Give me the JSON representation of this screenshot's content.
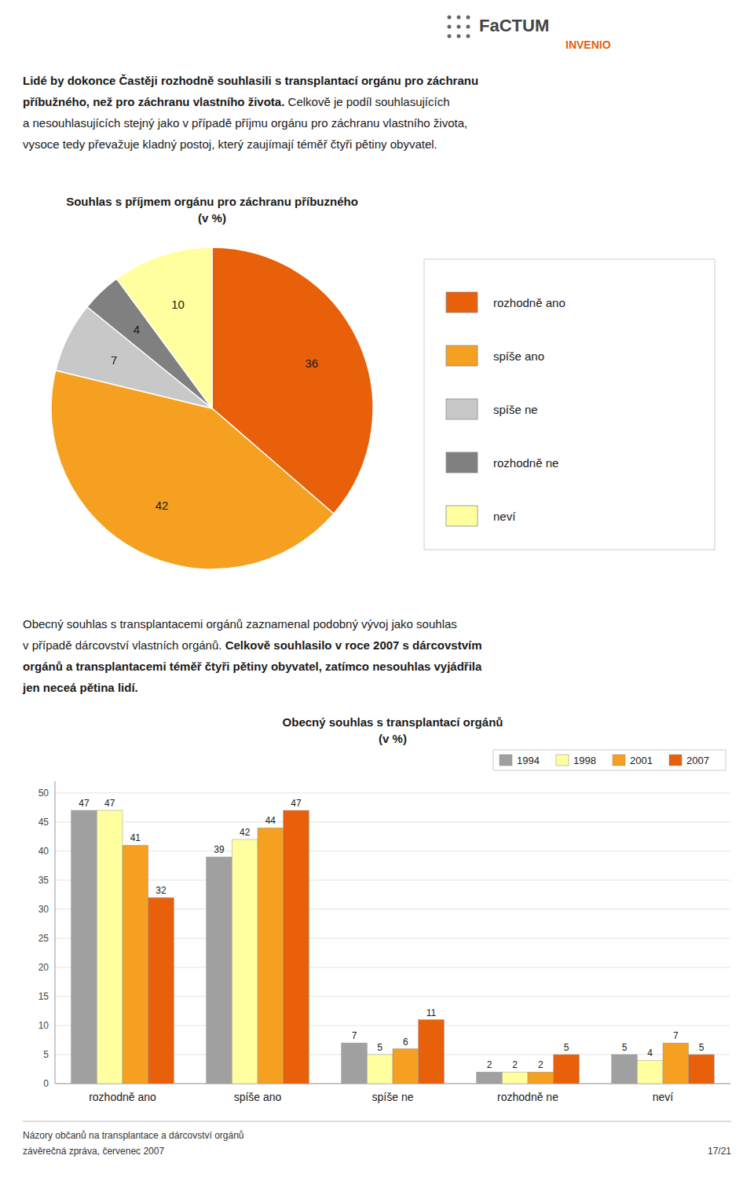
{
  "logo": {
    "texts": [
      "FaCTUM",
      "INVENIO"
    ],
    "colors": [
      "#444444",
      "#e8600a"
    ]
  },
  "header": [
    "Lidé by dokonce Častěji rozhodně souhlasili s transplantací orgánu pro záchranu",
    "příbužného, než pro záchranu vlastního života.",
    " Celkově je podíl souhlasujících",
    "a nesouhlasujících stejný jako v případě příjmu orgánu pro záchranu vlastního života,",
    "vysoce tedy převažuje kladný postoj, který zaujímají téměř čtyři pětiny obyvatel."
  ],
  "middle_text": [
    "Obecný souhlas s transplantacemi orgánů zaznamenal podobný vývoj jako souhlas",
    "v případě dárcovství vlastních orgánů.",
    " Celkově souhlasilo v roce 2007 s dárcovstvím",
    "orgánů a transplantacemi téměř čtyři pětiny obyvatel, zatímco nesouhlas vyjádřila",
    "jen neceá pětina lidí."
  ],
  "footer": [
    "Názory občanů na transplantace a dárcovství orgánů",
    "závěrečná zpráva, červenec 2007"
  ],
  "page_number": "17/21",
  "chart_data": [
    {
      "type": "pie",
      "title": "Souhlas s příjmem orgánu pro záchranu příbuzného",
      "subtitle": "(v %)",
      "categories": [
        "rozhodně ano",
        "spíše ano",
        "spíše ne",
        "rozhodně ne",
        "neví"
      ],
      "values": [
        36,
        42,
        7,
        4,
        10
      ],
      "colors": [
        "#e8600a",
        "#f5a020",
        "#c8c8c8",
        "#808080",
        "#ffffa0"
      ],
      "data_labels": true,
      "legend": "right"
    },
    {
      "type": "bar",
      "title": "Obecný souhlas s transplantací orgánů",
      "subtitle": "(v %)",
      "categories": [
        "rozhodně ano",
        "spíše ano",
        "spíše ne",
        "rozhodně ne",
        "neví"
      ],
      "series": [
        {
          "name": "1994",
          "color": "#a0a0a0",
          "values": [
            47,
            39,
            7,
            2,
            5
          ]
        },
        {
          "name": "1998",
          "color": "#ffffa0",
          "values": [
            47,
            42,
            5,
            2,
            4
          ]
        },
        {
          "name": "2001",
          "color": "#f5a020",
          "values": [
            41,
            44,
            6,
            2,
            7
          ]
        },
        {
          "name": "2007",
          "color": "#e8600a",
          "values": [
            32,
            47,
            11,
            5,
            5
          ]
        }
      ],
      "ylim": [
        0,
        52
      ],
      "yticks": [
        0,
        5,
        10,
        15,
        20,
        25,
        30,
        35,
        40,
        45,
        50
      ],
      "grid": true,
      "legend": "upper right",
      "data_labels": true
    }
  ]
}
